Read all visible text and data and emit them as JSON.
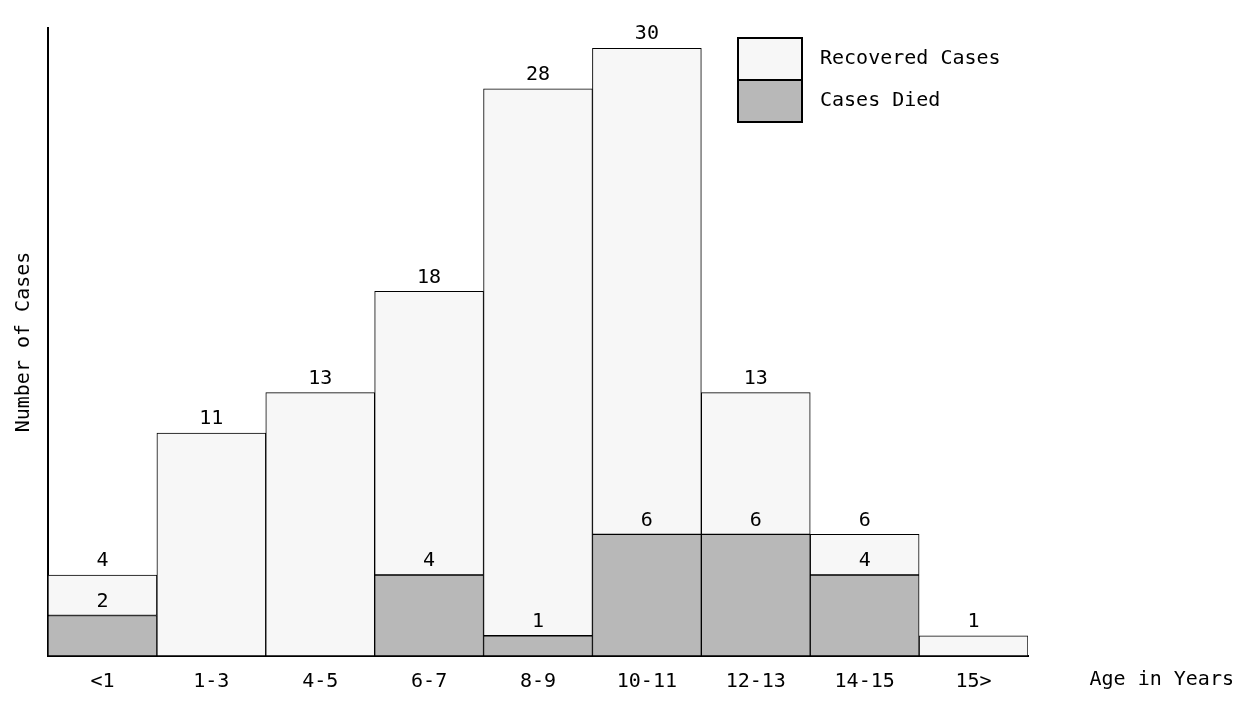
{
  "chart_data": {
    "type": "bar",
    "stacked": true,
    "xlabel": "Age in Years",
    "ylabel": "Number of Cases",
    "categories": [
      "<1",
      "1-3",
      "4-5",
      "6-7",
      "8-9",
      "10-11",
      "12-13",
      "14-15",
      "15>"
    ],
    "series": [
      {
        "name": "Cases Died",
        "color": "#b8b8b8",
        "values": [
          2,
          null,
          null,
          4,
          1,
          6,
          6,
          4,
          null
        ],
        "value_labels": [
          "2",
          null,
          null,
          "4",
          "1",
          "6",
          "6",
          "4",
          null
        ]
      },
      {
        "name": "Recovered Cases",
        "color": "#f7f7f7",
        "values": [
          2,
          11,
          13,
          14,
          27,
          24,
          7,
          2,
          1
        ]
      }
    ],
    "totals": [
      "4",
      "11",
      "13",
      "18",
      "28",
      "30",
      "13",
      "6",
      "1"
    ],
    "ylim": [
      0,
      31
    ],
    "tick_labels": "x",
    "grid": false,
    "legend": "top right"
  }
}
